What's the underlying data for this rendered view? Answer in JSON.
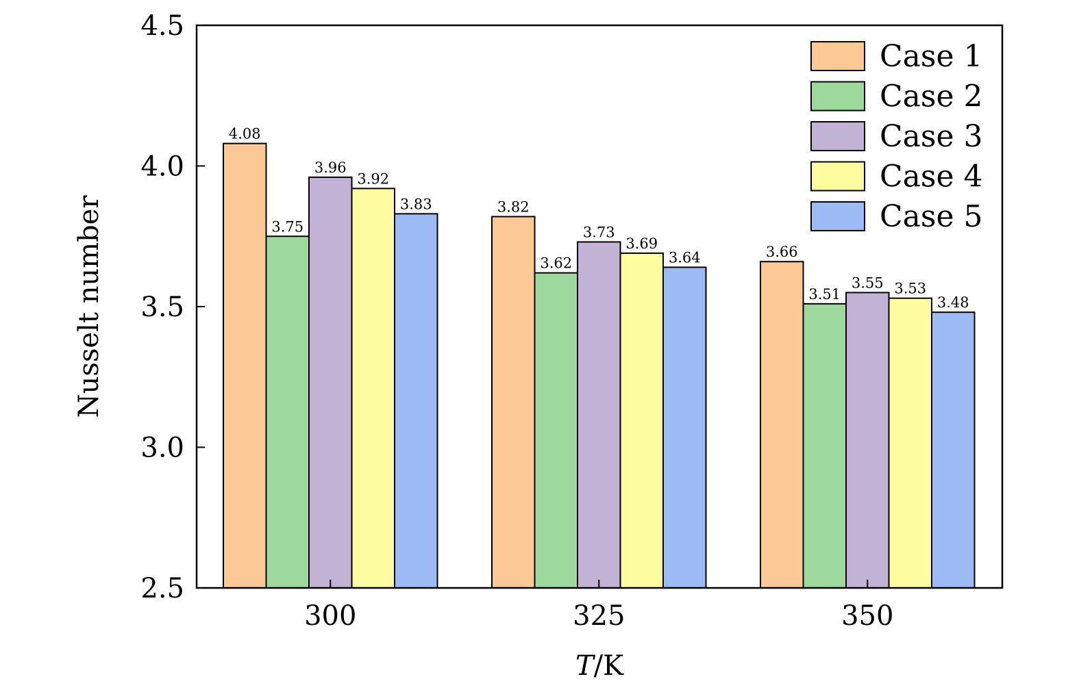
{
  "chart_data": {
    "type": "bar",
    "xlabel": {
      "italic": "T",
      "rest": "/K"
    },
    "ylabel": "Nusselt number",
    "ylim": [
      2.5,
      4.5
    ],
    "yticks": [
      "2.5",
      "3.0",
      "3.5",
      "4.0",
      "4.5"
    ],
    "categories": [
      "300",
      "325",
      "350"
    ],
    "series": [
      {
        "name": "Case 1",
        "color": "#FCC896",
        "values": [
          4.08,
          3.82,
          3.66
        ],
        "labels": [
          "4.08",
          "3.82",
          "3.66"
        ]
      },
      {
        "name": "Case 2",
        "color": "#9DD89D",
        "values": [
          3.75,
          3.62,
          3.51
        ],
        "labels": [
          "3.75",
          "3.62",
          "3.51"
        ]
      },
      {
        "name": "Case 3",
        "color": "#C2B2D6",
        "values": [
          3.96,
          3.73,
          3.55
        ],
        "labels": [
          "3.96",
          "3.73",
          "3.55"
        ]
      },
      {
        "name": "Case 4",
        "color": "#FDFC9E",
        "values": [
          3.92,
          3.69,
          3.53
        ],
        "labels": [
          "3.92",
          "3.69",
          "3.53"
        ]
      },
      {
        "name": "Case 5",
        "color": "#9DBBF4",
        "values": [
          3.83,
          3.64,
          3.48
        ],
        "labels": [
          "3.83",
          "3.64",
          "3.48"
        ]
      }
    ],
    "legend": "top-right",
    "grid": false
  }
}
